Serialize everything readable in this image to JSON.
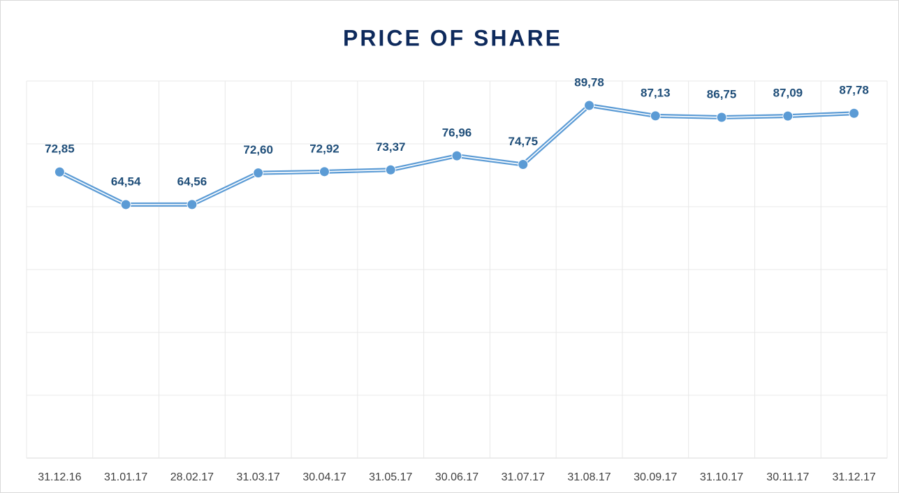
{
  "chart_data": {
    "type": "line",
    "title": "PRICE OF SHARE",
    "categories": [
      "31.12.16",
      "31.01.17",
      "28.02.17",
      "31.03.17",
      "30.04.17",
      "31.05.17",
      "30.06.17",
      "31.07.17",
      "31.08.17",
      "30.09.17",
      "31.10.17",
      "30.11.17",
      "31.12.17"
    ],
    "series": [
      {
        "name": "Price of share",
        "color": "#5b9bd5",
        "values": [
          72.85,
          64.54,
          64.56,
          72.6,
          72.92,
          73.37,
          76.96,
          74.75,
          89.78,
          87.13,
          86.75,
          87.09,
          87.78
        ],
        "value_labels": [
          "72,85",
          "64,54",
          "64,56",
          "72,60",
          "72,92",
          "73,37",
          "76,96",
          "74,75",
          "89,78",
          "87,13",
          "86,75",
          "87,09",
          "87,78"
        ]
      }
    ],
    "ylim": [
      0,
      96
    ],
    "yticks": [
      0,
      16,
      32,
      48,
      64,
      80,
      96
    ],
    "grid": true
  }
}
